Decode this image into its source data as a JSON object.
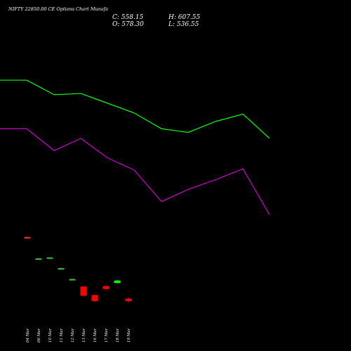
{
  "chart_data": {
    "type": "candlestick",
    "title": "NIFTY 22850.00 CE Options Chart Munafa",
    "watermark": "",
    "ohlc_summary": {
      "close_label": "C: 558.15",
      "open_label": "O: 578.30",
      "high_label": "H: 607.55",
      "low_label": "L: 536.55"
    },
    "x_labels": [
      "04 Mar",
      "06 Mar",
      "10 Mar",
      "11 Mar",
      "12 Mar",
      "13 Mar",
      "16 Mar",
      "17 Mar",
      "18 Mar",
      "19 Mar"
    ],
    "candles": [
      {
        "open": 1250,
        "close": 1254,
        "high": 1256,
        "low": 1248,
        "color": "#ff3333"
      },
      {
        "open": 1165,
        "close": 1166,
        "high": 1167,
        "low": 1164,
        "color": "#40c040"
      },
      {
        "open": 1168,
        "close": 1170,
        "high": 1171,
        "low": 1167,
        "color": "#40c040"
      },
      {
        "open": 1125,
        "close": 1126,
        "high": 1127,
        "low": 1124,
        "color": "#40c040"
      },
      {
        "open": 1080,
        "close": 1081,
        "high": 1082,
        "low": 1079,
        "color": "#40c040"
      },
      {
        "open": 1050,
        "close": 1012,
        "high": 1052,
        "low": 1010,
        "color": "#ff0000"
      },
      {
        "open": 1015,
        "close": 990,
        "high": 1016,
        "low": 988,
        "color": "#ff0000"
      },
      {
        "open": 1052,
        "close": 1040,
        "high": 1053,
        "low": 1038,
        "color": "#ff0000"
      },
      {
        "open": 1065,
        "close": 1075,
        "high": 1077,
        "low": 1064,
        "color": "#00ff00"
      },
      {
        "open": 1000,
        "close": 990,
        "high": 1005,
        "low": 985,
        "color": "#ff0000"
      }
    ],
    "series": [
      {
        "color": "#00ff00",
        "values": [
          1900,
          1900,
          1840,
          1845,
          1805,
          1765,
          1700,
          1685,
          1730,
          1760,
          1660
        ]
      },
      {
        "color": "#cc00cc",
        "values": [
          1700,
          1700,
          1610,
          1660,
          1580,
          1530,
          1400,
          1450,
          1490,
          1535,
          1345
        ]
      }
    ],
    "ylim": [
      935,
      2100
    ],
    "colors": {
      "background": "#000000",
      "text": "#ffffff",
      "title": "#ffffff"
    }
  }
}
